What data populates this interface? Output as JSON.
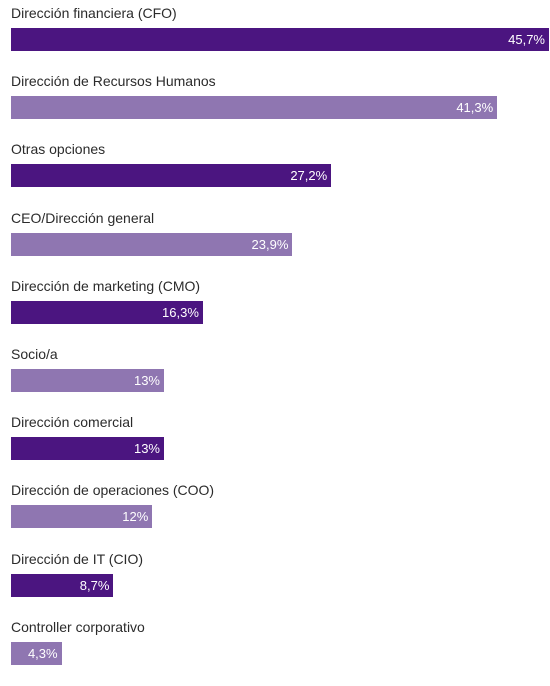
{
  "chart_data": {
    "type": "bar",
    "orientation": "horizontal",
    "categories": [
      "Dirección financiera (CFO)",
      "Dirección de Recursos Humanos",
      "Otras opciones",
      "CEO/Dirección general",
      "Dirección de marketing (CMO)",
      "Socio/a",
      "Dirección comercial",
      "Dirección de operaciones (COO)",
      "Dirección de IT (CIO)",
      "Controller corporativo"
    ],
    "values": [
      45.7,
      41.3,
      27.2,
      23.9,
      16.3,
      13,
      13,
      12,
      8.7,
      4.3
    ],
    "value_labels": [
      "45,7%",
      "41,3%",
      "27,2%",
      "23,9%",
      "16,3%",
      "13%",
      "13%",
      "12%",
      "8,7%",
      "4,3%"
    ],
    "title": "",
    "xlabel": "",
    "ylabel": "",
    "xlim": [
      0,
      45.7
    ],
    "grid": false,
    "colors": {
      "dark": "#4b1580",
      "light": "#8f76b1"
    },
    "bar_color_pattern": [
      "dark",
      "light",
      "dark",
      "light",
      "dark",
      "light",
      "dark",
      "light",
      "dark",
      "light"
    ]
  }
}
